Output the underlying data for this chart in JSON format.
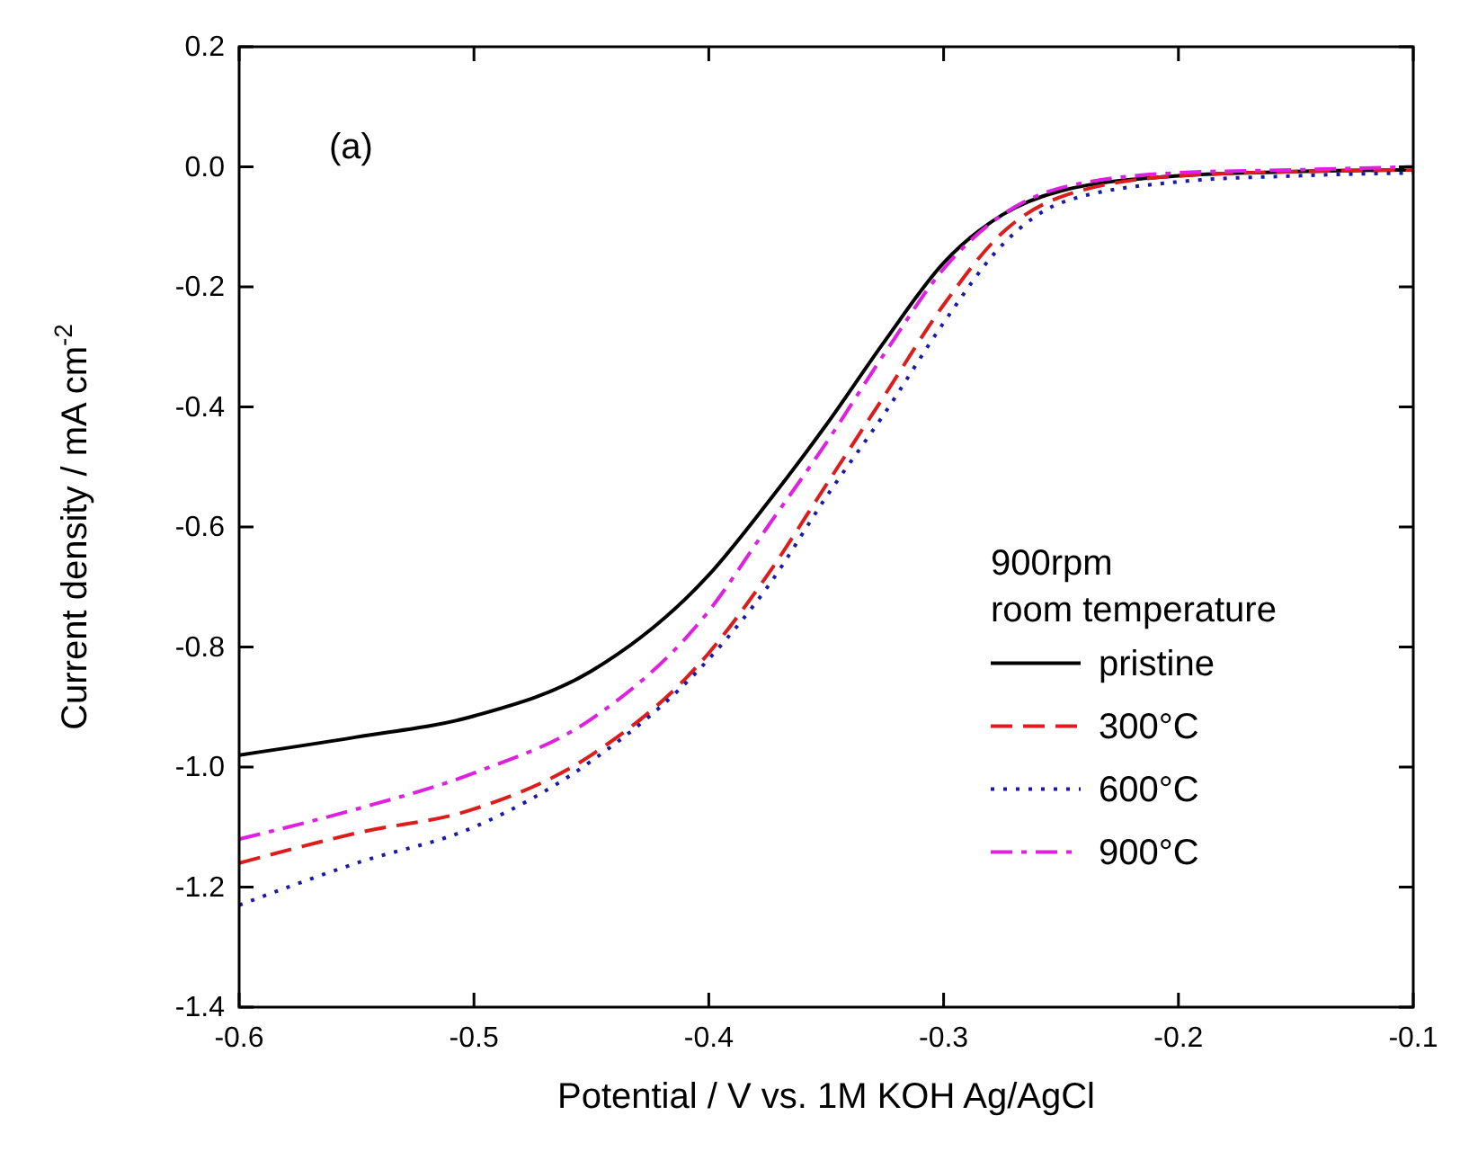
{
  "chart_data": {
    "type": "line",
    "xlabel": "Potential / V vs. 1M KOH Ag/AgCl",
    "ylabel": "Current density / mA cm$^{-2}$",
    "legend_title": "900rpm\nroom temperature",
    "annotations": [
      "(a)"
    ],
    "legend": "right",
    "grid": false,
    "x": [
      -0.6,
      -0.55,
      -0.5,
      -0.45,
      -0.4,
      -0.375,
      -0.35,
      -0.325,
      -0.3,
      -0.275,
      -0.25,
      -0.2,
      -0.15,
      -0.1
    ],
    "xlim": [
      -0.6,
      -0.1
    ],
    "xticks": [
      -0.6,
      -0.5,
      -0.4,
      -0.3,
      -0.2,
      -0.1
    ],
    "ylim": [
      -1.4,
      0.2
    ],
    "yticks": [
      -1.4,
      -1.2,
      {
        "value": -1,
        "label": "-1.0"
      },
      -0.8,
      -0.6,
      -0.4,
      -0.2,
      {
        "value": 0,
        "label": "0.0"
      },
      0.2
    ],
    "series": [
      {
        "name": "pristine",
        "color": "#000000",
        "line_style": "solid",
        "values": [
          -0.98,
          -0.95,
          -0.915,
          -0.84,
          -0.68,
          -0.56,
          -0.43,
          -0.29,
          -0.16,
          -0.08,
          -0.04,
          -0.015,
          -0.008,
          -0.005
        ]
      },
      {
        "name": "300°C",
        "color": "#dd1c1c",
        "line_style": "dashed",
        "values": [
          -1.16,
          -1.11,
          -1.07,
          -0.98,
          -0.81,
          -0.68,
          -0.53,
          -0.38,
          -0.23,
          -0.11,
          -0.05,
          -0.015,
          -0.008,
          -0.005
        ]
      },
      {
        "name": "600°C",
        "color": "#1a1aaa",
        "line_style": "dotted",
        "values": [
          -1.23,
          -1.16,
          -1.1,
          -0.99,
          -0.82,
          -0.7,
          -0.55,
          -0.41,
          -0.26,
          -0.13,
          -0.06,
          -0.025,
          -0.015,
          -0.01
        ]
      },
      {
        "name": "900°C",
        "color": "#e020e0",
        "line_style": "dashdot",
        "values": [
          -1.12,
          -1.07,
          -1.01,
          -0.92,
          -0.74,
          -0.6,
          -0.46,
          -0.31,
          -0.17,
          -0.08,
          -0.035,
          -0.01,
          -0.005,
          0
        ]
      }
    ]
  }
}
